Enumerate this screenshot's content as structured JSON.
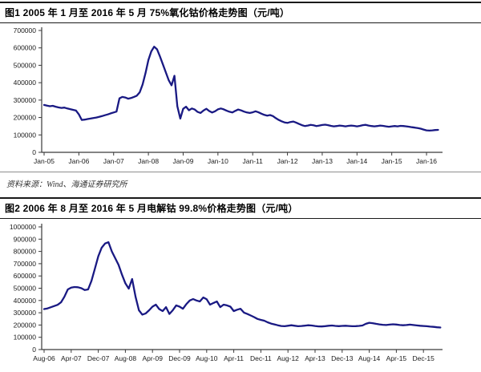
{
  "source_note": "资料来源：Wind、海通证券研究所",
  "chart_data": [
    {
      "type": "line",
      "title": "图1  2005 年 1 月至 2016 年 5 月 75%氧化钴价格走势图（元/吨）",
      "xlabel": "",
      "ylabel": "",
      "unit": "元/吨",
      "x_unit": "month",
      "x_start": "Jan-05",
      "x_end": "May-16",
      "grid": false,
      "legend": "none",
      "ylim": [
        0,
        700000
      ],
      "yticks": [
        0,
        100000,
        200000,
        300000,
        400000,
        500000,
        600000,
        700000
      ],
      "xtick_every_months": 12,
      "xtick_labels": [
        "Jan-05",
        "Jan-06",
        "Jan-07",
        "Jan-08",
        "Jan-09",
        "Jan-10",
        "Jan-11",
        "Jan-12",
        "Jan-13",
        "Jan-14",
        "Jan-15",
        "Jan-16"
      ],
      "series": [
        {
          "name": "75%氧化钴价格",
          "color": "#191983",
          "values": [
            272000,
            268000,
            265000,
            267000,
            262000,
            258000,
            255000,
            257000,
            252000,
            248000,
            244000,
            240000,
            218000,
            186000,
            188000,
            191000,
            194000,
            197000,
            200000,
            204000,
            208000,
            213000,
            218000,
            224000,
            229000,
            234000,
            310000,
            318000,
            315000,
            308000,
            312000,
            318000,
            325000,
            345000,
            390000,
            455000,
            530000,
            580000,
            607000,
            592000,
            550000,
            505000,
            460000,
            415000,
            385000,
            440000,
            265000,
            194000,
            250000,
            262000,
            242000,
            252000,
            246000,
            232000,
            226000,
            240000,
            250000,
            237000,
            229000,
            236000,
            247000,
            252000,
            247000,
            239000,
            233000,
            229000,
            238000,
            246000,
            241000,
            234000,
            229000,
            226000,
            230000,
            236000,
            230000,
            222000,
            215000,
            211000,
            214000,
            208000,
            196000,
            186000,
            178000,
            172000,
            169000,
            174000,
            177000,
            171000,
            163000,
            156000,
            151000,
            154000,
            158000,
            155000,
            151000,
            154000,
            157000,
            159000,
            156000,
            152000,
            149000,
            151000,
            154000,
            152000,
            149000,
            152000,
            154000,
            152000,
            149000,
            152000,
            156000,
            158000,
            154000,
            151000,
            149000,
            151000,
            154000,
            152000,
            149000,
            147000,
            149000,
            151000,
            149000,
            152000,
            151000,
            149000,
            147000,
            144000,
            142000,
            139000,
            136000,
            131000,
            126000,
            125000,
            126000,
            128000,
            129000
          ]
        }
      ]
    },
    {
      "type": "line",
      "title": "图2  2006 年 8 月至 2016 年 5 月电解钴 99.8%价格走势图（元/吨）",
      "xlabel": "",
      "ylabel": "",
      "unit": "元/吨",
      "x_unit": "month",
      "x_start": "Aug-06",
      "x_end": "May-16",
      "grid": false,
      "legend": "none",
      "ylim": [
        0,
        1000000
      ],
      "yticks": [
        0,
        100000,
        200000,
        300000,
        400000,
        500000,
        600000,
        700000,
        800000,
        900000,
        1000000
      ],
      "xtick_every_months": 8,
      "xtick_labels": [
        "Aug-06",
        "Apr-07",
        "Dec-07",
        "Aug-08",
        "Apr-09",
        "Dec-09",
        "Aug-10",
        "Apr-11",
        "Dec-11",
        "Aug-12",
        "Apr-13",
        "Dec-13",
        "Aug-14",
        "Apr-15",
        "Dec-15"
      ],
      "series": [
        {
          "name": "电解钴99.8%价格",
          "color": "#191983",
          "values": [
            330000,
            335000,
            345000,
            355000,
            365000,
            385000,
            430000,
            490000,
            505000,
            510000,
            508000,
            500000,
            485000,
            490000,
            560000,
            660000,
            760000,
            830000,
            865000,
            875000,
            800000,
            745000,
            690000,
            610000,
            540000,
            497000,
            575000,
            430000,
            320000,
            285000,
            295000,
            320000,
            350000,
            366000,
            330000,
            314000,
            346000,
            290000,
            320000,
            360000,
            350000,
            333000,
            370000,
            400000,
            412000,
            400000,
            392000,
            425000,
            410000,
            366000,
            380000,
            392000,
            346000,
            366000,
            360000,
            350000,
            314000,
            325000,
            333000,
            301000,
            290000,
            278000,
            265000,
            250000,
            242000,
            235000,
            222000,
            212000,
            205000,
            198000,
            192000,
            190000,
            194000,
            198000,
            194000,
            190000,
            192000,
            195000,
            198000,
            196000,
            192000,
            189000,
            188000,
            191000,
            194000,
            196000,
            193000,
            191000,
            193000,
            194000,
            192000,
            190000,
            191000,
            193000,
            196000,
            210000,
            218000,
            215000,
            210000,
            205000,
            202000,
            200000,
            203000,
            206000,
            204000,
            200000,
            198000,
            200000,
            203000,
            200000,
            197000,
            194000,
            192000,
            190000,
            187000,
            185000,
            182000,
            180000
          ]
        }
      ]
    }
  ]
}
